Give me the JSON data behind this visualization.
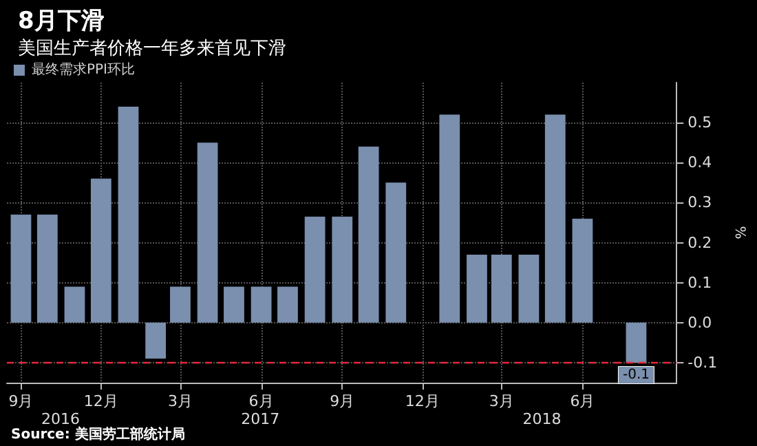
{
  "chart_data": {
    "type": "bar",
    "title": "8月下滑",
    "subtitle": "美国生产者价格一年多来首见下滑",
    "ylabel": "%",
    "x": [
      "2016-09",
      "2016-10",
      "2016-11",
      "2016-12",
      "2017-01",
      "2017-02",
      "2017-03",
      "2017-04",
      "2017-05",
      "2017-06",
      "2017-07",
      "2017-08",
      "2017-09",
      "2017-10",
      "2017-11",
      "2017-12",
      "2018-01",
      "2018-02",
      "2018-03",
      "2018-04",
      "2018-05",
      "2018-06",
      "2018-07",
      "2018-08"
    ],
    "series": [
      {
        "name": "最终需求PPI环比",
        "color": "#7b8fae",
        "values": [
          0.27,
          0.27,
          0.09,
          0.36,
          0.54,
          -0.09,
          0.09,
          0.45,
          0.09,
          0.09,
          0.09,
          0.265,
          0.265,
          0.44,
          0.35,
          0.0,
          0.52,
          0.17,
          0.17,
          0.17,
          0.52,
          0.26,
          0.0,
          -0.1
        ],
        "value_labels": [
          null,
          null,
          null,
          null,
          null,
          null,
          null,
          null,
          null,
          null,
          null,
          null,
          null,
          null,
          null,
          null,
          null,
          null,
          null,
          null,
          null,
          null,
          null,
          "-0.1"
        ]
      }
    ],
    "xlim": [
      "2016-08-16",
      "2018-09-16"
    ],
    "xticks": [
      {
        "value": "2016-09",
        "label": "9月"
      },
      {
        "value": "2016-12",
        "label": "12月"
      },
      {
        "value": "2017-03",
        "label": "3月"
      },
      {
        "value": "2017-06",
        "label": "6月"
      },
      {
        "value": "2017-09",
        "label": "9月"
      },
      {
        "value": "2017-12",
        "label": "12月"
      },
      {
        "value": "2018-03",
        "label": "3月"
      },
      {
        "value": "2018-06",
        "label": "6月"
      }
    ],
    "x2lim": [
      "2016-08-16",
      "2018-09-16"
    ],
    "x2ticks": [
      {
        "value": "2016-10-16",
        "label": "2016"
      },
      {
        "value": "2017-05-31",
        "label": "2017"
      },
      {
        "value": "2018-04-16",
        "label": "2018"
      }
    ],
    "ylim": [
      -0.15,
      0.6
    ],
    "yticks": [
      {
        "value": -0.1,
        "label": "-0.1"
      },
      {
        "value": 0,
        "label": "0.0"
      },
      {
        "value": 0.1,
        "label": "0.1"
      },
      {
        "value": 0.2,
        "label": "0.2"
      },
      {
        "value": 0.3,
        "label": "0.3"
      },
      {
        "value": 0.4,
        "label": "0.4"
      },
      {
        "value": 0.5,
        "label": "0.5"
      }
    ],
    "ref_lines": [
      {
        "axis": "y",
        "value": -0.095,
        "color": "#e8293b",
        "line_style": "dashed"
      }
    ],
    "annotations": [
      "Source: 美国劳工部统计局"
    ],
    "grid": true,
    "legend": "top left"
  }
}
